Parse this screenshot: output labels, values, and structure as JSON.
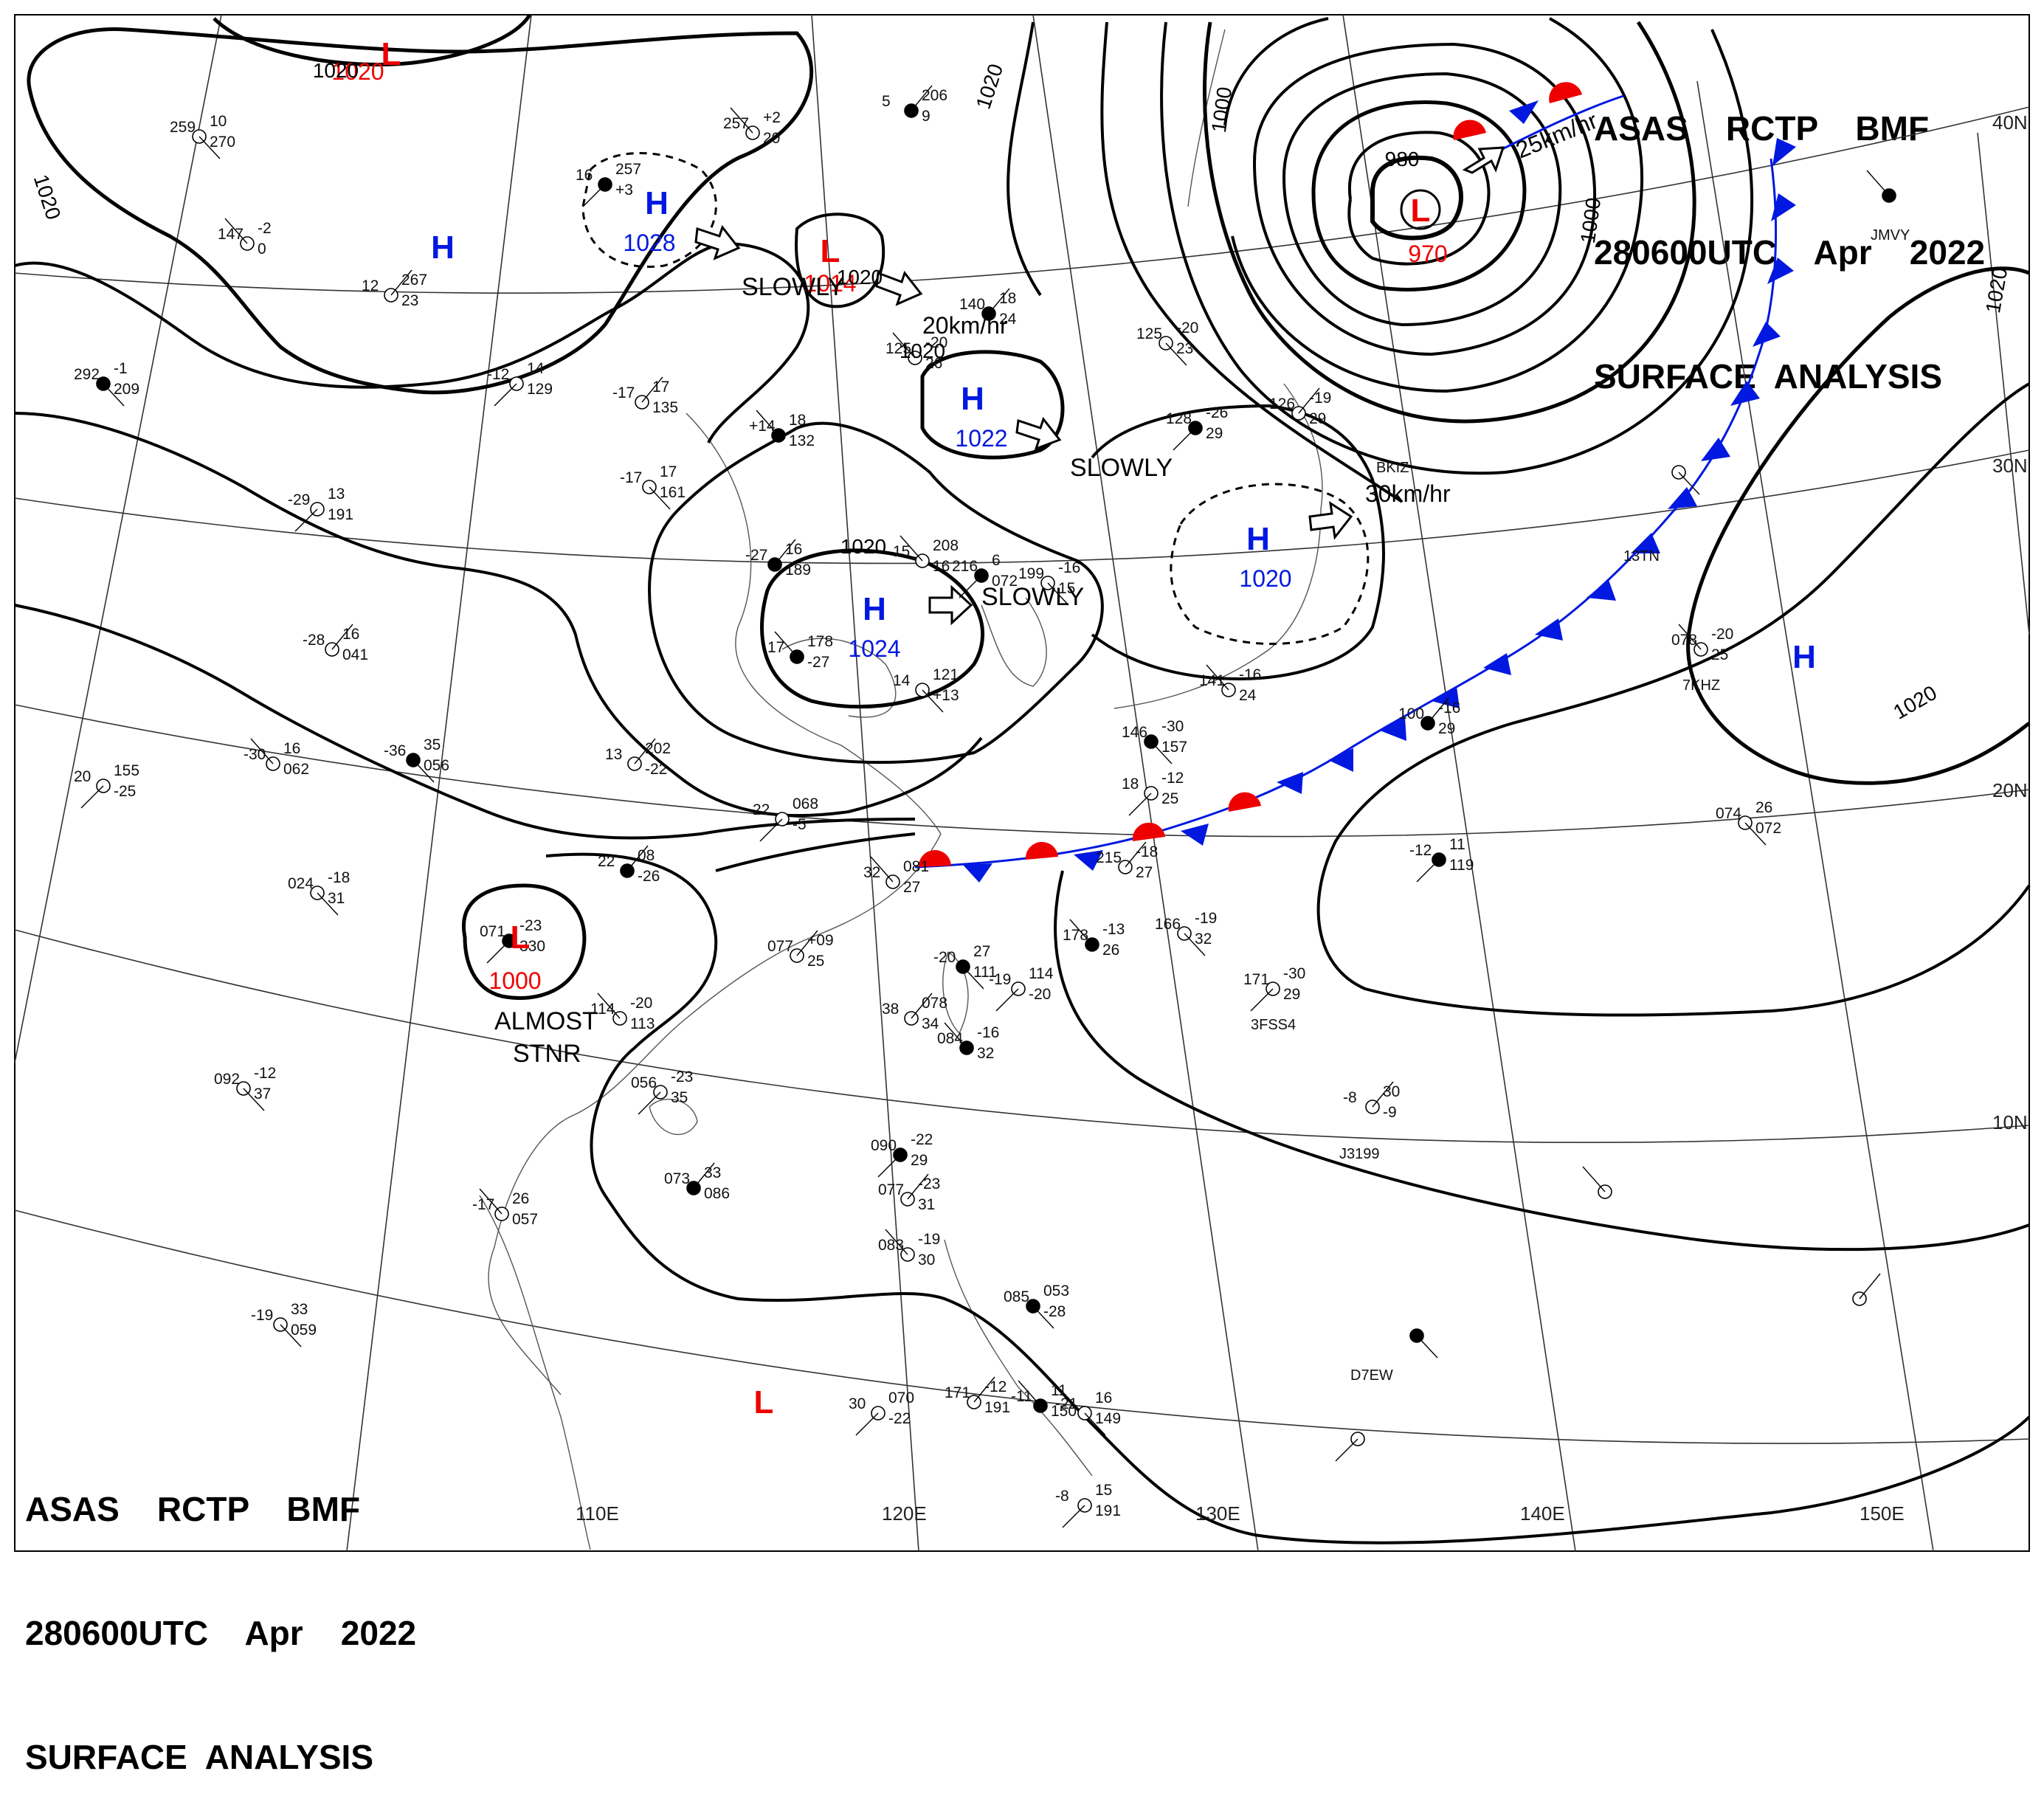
{
  "header": {
    "lines": [
      "ASAS    RCTP    BMF",
      "280600UTC    Apr    2022",
      "SURFACE  ANALYSIS"
    ]
  },
  "footer": {
    "lines": [
      "ASAS    RCTP    BMF",
      "280600UTC    Apr    2022",
      "SURFACE  ANALYSIS"
    ]
  },
  "longitude_labels": [
    "110E",
    "120E",
    "130E",
    "140E",
    "150E"
  ],
  "latitude_labels": [
    "40N",
    "30N",
    "20N",
    "10N"
  ],
  "pressure_systems": [
    {
      "type": "L",
      "value": "1020",
      "label": "",
      "motion": ""
    },
    {
      "type": "H",
      "value": "1028",
      "label": "",
      "motion": ""
    },
    {
      "type": "H",
      "value": "",
      "label": "",
      "motion": ""
    },
    {
      "type": "L",
      "value": "1014",
      "label": "SLOWLY",
      "motion": ""
    },
    {
      "type": "H",
      "value": "1022",
      "label": "SLOWLY",
      "motion": "20km/hr"
    },
    {
      "type": "H",
      "value": "1024",
      "label": "SLOWLY",
      "motion": ""
    },
    {
      "type": "H",
      "value": "1020",
      "label": "",
      "motion": "30km/hr"
    },
    {
      "type": "L",
      "value": "970",
      "label": "",
      "motion": "25km/hr"
    },
    {
      "type": "H",
      "value": "",
      "label": "",
      "motion": ""
    },
    {
      "type": "L",
      "value": "1000",
      "label": "ALMOST STNR",
      "motion": ""
    },
    {
      "type": "L",
      "value": "",
      "label": "",
      "motion": ""
    }
  ],
  "isobar_labels": [
    "1020",
    "1020",
    "1020",
    "1020",
    "1020",
    "1020",
    "1020",
    "1020",
    "1000",
    "1000",
    "980",
    "1020"
  ],
  "station_labels": [
    "BKIZ",
    "13TN",
    "7KHZ",
    "3FSS4",
    "J3199",
    "D7EW",
    "JMVY"
  ],
  "station_values": [
    "5",
    "206",
    "9",
    "257",
    "+2",
    "20",
    "259",
    "10",
    "270",
    "16",
    "257",
    "+3",
    "12",
    "267",
    "23",
    "147",
    "-2",
    "0",
    "292",
    "-1",
    "209",
    "-12",
    "14",
    "129",
    "-17",
    "17",
    "135",
    "+14",
    "18",
    "132",
    "-17",
    "17",
    "161",
    "-29",
    "13",
    "191",
    "-27",
    "16",
    "189",
    "15",
    "208",
    "16",
    "199",
    "-16",
    "15",
    "216",
    "6",
    "072",
    "-28",
    "16",
    "041",
    "-30",
    "16",
    "062",
    "-36",
    "35",
    "056",
    "20",
    "155",
    "-25",
    "13",
    "202",
    "-22",
    "17",
    "178",
    "-27",
    "14",
    "121",
    "+13",
    "22",
    "068",
    "-5",
    "22",
    "08",
    "-26",
    "32",
    "081",
    "27",
    "024",
    "-18",
    "31",
    "071",
    "-23",
    "330",
    "077",
    "+09",
    "25",
    "114",
    "-20",
    "113",
    "-20",
    "27",
    "111",
    "-19",
    "114",
    "-20",
    "38",
    "078",
    "34",
    "084",
    "-16",
    "32",
    "092",
    "-12",
    "37",
    "056",
    "-23",
    "35",
    "073",
    "33",
    "086",
    "-17",
    "26",
    "057",
    "-19",
    "33",
    "059",
    "090",
    "-22",
    "29",
    "077",
    "-23",
    "31",
    "083",
    "-19",
    "30",
    "085",
    "053",
    "-28",
    "30",
    "070",
    "-22",
    "171",
    "-12",
    "191",
    "-11",
    "11",
    "150",
    "-21",
    "16",
    "149",
    "-8",
    "15",
    "191",
    "140",
    "18",
    "24",
    "125",
    "-20",
    "26",
    "125",
    "-20",
    "23",
    "128",
    "-26",
    "29",
    "126",
    "-19",
    "29",
    "141",
    "-16",
    "24",
    "146",
    "-30",
    "157",
    "18",
    "-12",
    "25",
    "215",
    "-18",
    "27",
    "178",
    "-13",
    "26",
    "166",
    "-19",
    "32",
    "171",
    "-30",
    "29",
    "100",
    "-16",
    "29",
    "078",
    "-20",
    "25",
    "074",
    "26",
    "072",
    "-12",
    "11",
    "119",
    "-8",
    "30",
    "-9"
  ],
  "colors": {
    "high": "#0018e0",
    "low": "#ee0000",
    "warm_front": "#ee0000",
    "cold_front": "#0018e0",
    "isobar": "#000000",
    "coast": "#444444",
    "grid": "#333333"
  }
}
